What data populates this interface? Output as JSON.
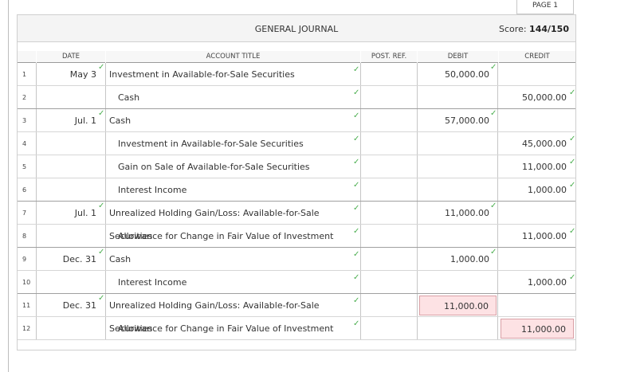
{
  "page_tab": "PAGE 1",
  "journal": {
    "title": "GENERAL JOURNAL",
    "score_label": "Score:",
    "score_value": "144/150"
  },
  "columns": {
    "date": "DATE",
    "account": "ACCOUNT TITLE",
    "post_ref": "POST. REF.",
    "debit": "DEBIT",
    "credit": "CREDIT"
  },
  "rows": [
    {
      "num": "1",
      "date": "May 3",
      "account": "Investment in Available-for-Sale Securities",
      "indent": false,
      "debit": "50,000.00",
      "credit": ""
    },
    {
      "num": "2",
      "date": "",
      "account": "Cash",
      "indent": true,
      "debit": "",
      "credit": "50,000.00"
    },
    {
      "num": "3",
      "date": "Jul. 1",
      "account": "Cash",
      "indent": false,
      "debit": "57,000.00",
      "credit": ""
    },
    {
      "num": "4",
      "date": "",
      "account": "Investment in Available-for-Sale Securities",
      "indent": true,
      "debit": "",
      "credit": "45,000.00"
    },
    {
      "num": "5",
      "date": "",
      "account": "Gain on Sale of Available-for-Sale Securities",
      "indent": true,
      "debit": "",
      "credit": "11,000.00"
    },
    {
      "num": "6",
      "date": "",
      "account": "Interest Income",
      "indent": true,
      "debit": "",
      "credit": "1,000.00"
    },
    {
      "num": "7",
      "date": "Jul. 1",
      "account": "Unrealized Holding Gain/Loss: Available-for-Sale Securities",
      "indent": false,
      "debit": "11,000.00",
      "credit": ""
    },
    {
      "num": "8",
      "date": "",
      "account": "Allowance for Change in Fair Value of Investment",
      "indent": true,
      "debit": "",
      "credit": "11,000.00"
    },
    {
      "num": "9",
      "date": "Dec. 31",
      "account": "Cash",
      "indent": false,
      "debit": "1,000.00",
      "credit": ""
    },
    {
      "num": "10",
      "date": "",
      "account": "Interest Income",
      "indent": true,
      "debit": "",
      "credit": "1,000.00"
    },
    {
      "num": "11",
      "date": "Dec. 31",
      "account": "Unrealized Holding Gain/Loss: Available-for-Sale Securities",
      "indent": false,
      "debit": "11,000.00",
      "credit": ""
    },
    {
      "num": "12",
      "date": "",
      "account": "Allowance for Change in Fair Value of Investment",
      "indent": true,
      "debit": "",
      "credit": "11,000.00"
    }
  ],
  "status": {
    "date": [
      "correct",
      "",
      "correct",
      "",
      "",
      "",
      "correct",
      "",
      "correct",
      "",
      "correct",
      ""
    ],
    "account": [
      "correct",
      "correct",
      "correct",
      "correct",
      "correct",
      "correct",
      "correct",
      "correct",
      "correct",
      "correct",
      "correct",
      "correct"
    ],
    "debit": [
      "correct",
      "",
      "correct",
      "",
      "",
      "",
      "correct",
      "",
      "correct",
      "",
      "incorrect",
      ""
    ],
    "credit": [
      "",
      "correct",
      "",
      "correct",
      "correct",
      "correct",
      "",
      "correct",
      "",
      "correct",
      "",
      "incorrect"
    ]
  },
  "colors": {
    "correct_check": "#4caf50",
    "incorrect_fill": "#fde2e4"
  }
}
